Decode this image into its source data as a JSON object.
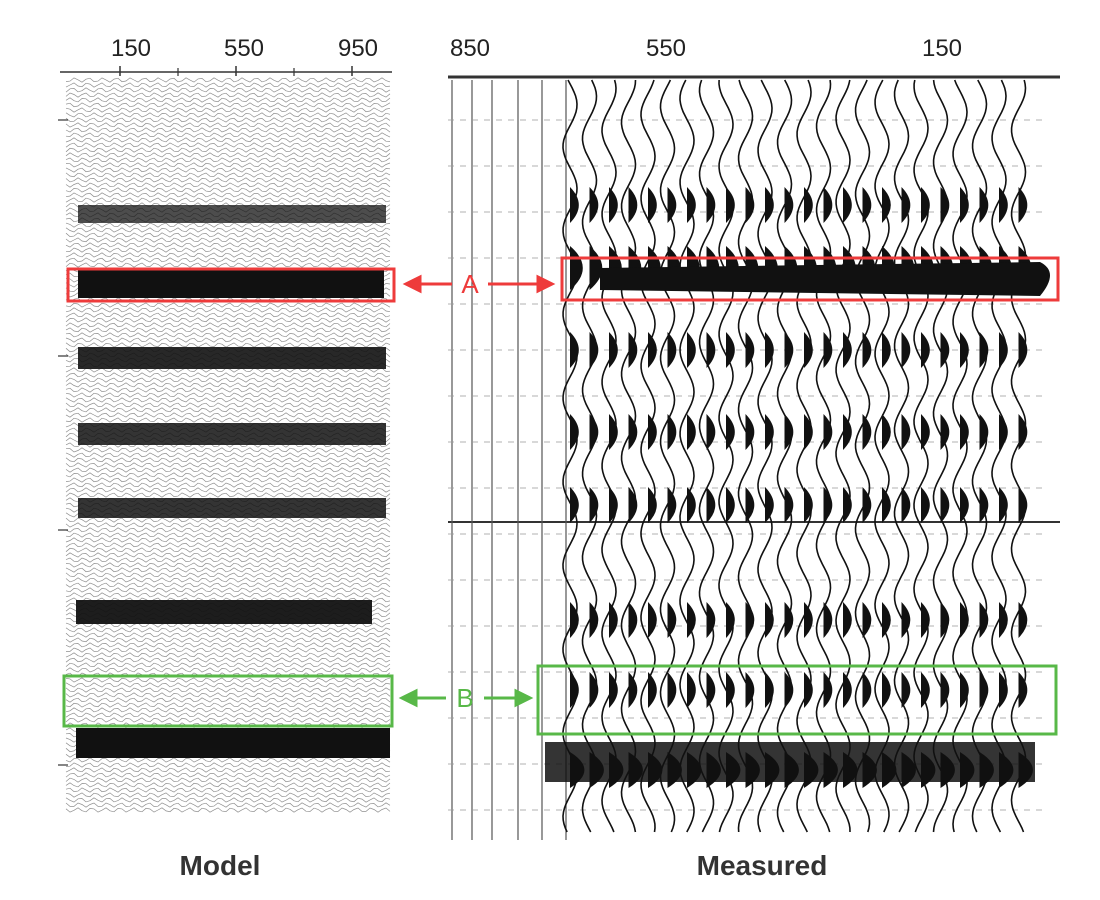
{
  "left_panel": {
    "caption": "Model",
    "tick_labels": [
      "150",
      "550",
      "950"
    ]
  },
  "right_panel": {
    "caption": "Measured",
    "tick_labels": [
      "850",
      "550",
      "150"
    ]
  },
  "callouts": [
    {
      "label": "A",
      "color": "#ee3b3b"
    },
    {
      "label": "B",
      "color": "#58b848"
    }
  ],
  "colors": {
    "trace": "#111111",
    "highlight_a": "#ee3b3b",
    "highlight_b": "#58b848"
  }
}
